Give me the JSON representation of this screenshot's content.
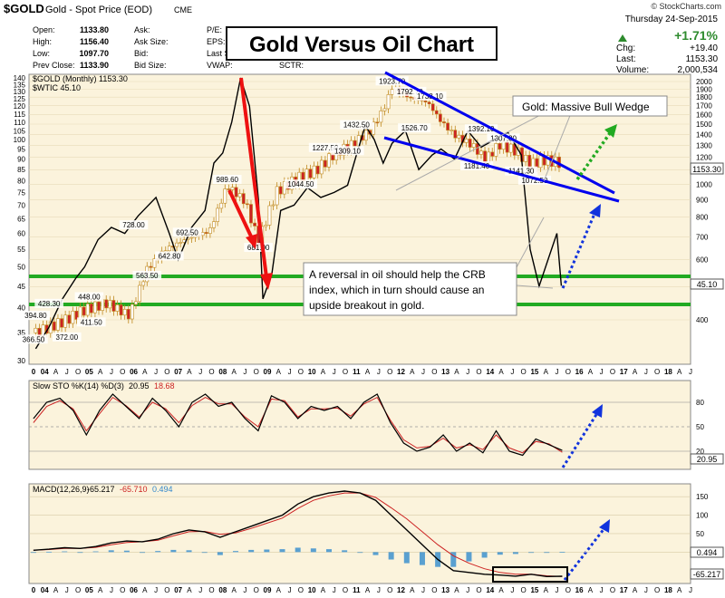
{
  "header": {
    "symbol": "$GOLD",
    "name": "Gold - Spot Price (EOD)",
    "exchange": "CME",
    "brand": "© StockCharts.com",
    "date": "Thursday  24-Sep-2015",
    "pct_change": "+1.71%",
    "chg_label": "Chg:",
    "chg_value": "+19.40",
    "last_label": "Last:",
    "last_value": "1153.30",
    "volume_label": "Volume:",
    "volume_value": "2,000,534",
    "stats": [
      {
        "label": "Open:",
        "value": "1133.80"
      },
      {
        "label": "High:",
        "value": "1156.40"
      },
      {
        "label": "Low:",
        "value": "1097.70"
      },
      {
        "label": "Prev Close:",
        "value": "1133.90"
      }
    ],
    "mid_labels": [
      "Ask:",
      "Ask Size:",
      "Bid:",
      "Bid Size:"
    ],
    "right_labels": [
      "P/E:",
      "EPS:",
      "Last S",
      "VWAP:",
      "SCTR:"
    ]
  },
  "title": "Gold Versus Oil Chart",
  "legend": {
    "gold": "$GOLD (Monthly) 1153.30",
    "wtic": "$WTIC 45.10"
  },
  "callouts": {
    "wedge": "Gold:  Massive Bull Wedge",
    "reversal": [
      "A reversal in oil should help the CRB",
      "index, which in turn should cause an",
      "upside breakout in gold."
    ]
  },
  "colors": {
    "gold_up": "#ffffff",
    "gold_down": "#cc2222",
    "gold_wick": "#c08a20",
    "oil_line": "#000000",
    "support": "#22aa22",
    "wedge": "#0000ee",
    "red_arrow": "#ee1111",
    "green_arrow": "#22aa22",
    "blue_arrow": "#1133dd",
    "panel_bg": "#fbf3dc"
  },
  "chart_data": [
    {
      "type": "line",
      "panel": "price",
      "title": "$GOLD (Monthly)",
      "x_ticks": [
        "0",
        "04",
        "A",
        "J",
        "O",
        "05",
        "A",
        "J",
        "O",
        "06",
        "A",
        "J",
        "O",
        "07",
        "A",
        "J",
        "O",
        "08",
        "A",
        "J",
        "O",
        "09",
        "A",
        "J",
        "O",
        "10",
        "A",
        "J",
        "O",
        "11",
        "A",
        "J",
        "O",
        "12",
        "A",
        "J",
        "O",
        "13",
        "A",
        "J",
        "O",
        "14",
        "A",
        "J",
        "O",
        "15",
        "A",
        "J",
        "O",
        "16",
        "A",
        "J",
        "O",
        "17",
        "A",
        "J",
        "O",
        "18",
        "A",
        "J"
      ],
      "left_axis": {
        "ticks": [
          140,
          135,
          130,
          125,
          120,
          115,
          110,
          105,
          100,
          95,
          90,
          85,
          80,
          75,
          70,
          65,
          60,
          55,
          50,
          45,
          40,
          35,
          30
        ],
        "label": "$WTIC"
      },
      "right_axis": {
        "ticks": [
          2000,
          1900,
          1800,
          1700,
          1600,
          1500,
          1400,
          1300,
          1200,
          1100,
          1000,
          900,
          800,
          700,
          600,
          500,
          400
        ],
        "scale": "log"
      },
      "last_labels": {
        "gold": "1153.30",
        "oil": "45.10"
      },
      "series": [
        {
          "name": "$GOLD",
          "axis": "right",
          "type": "candlestick",
          "x": [
            2003.9,
            2004.5,
            2005.0,
            2005.5,
            2006.0,
            2006.4,
            2006.8,
            2007.3,
            2007.8,
            2008.2,
            2008.6,
            2008.9,
            2009.3,
            2009.8,
            2010.2,
            2010.6,
            2011.0,
            2011.4,
            2011.7,
            2011.9,
            2012.3,
            2012.7,
            2013.0,
            2013.3,
            2013.7,
            2014.0,
            2014.3,
            2014.7,
            2015.0,
            2015.3,
            2015.7
          ],
          "values": [
            366.5,
            394.8,
            428.3,
            448.0,
            411.5,
            563.5,
            642.8,
            692.5,
            728.0,
            989.6,
            890,
            681.0,
            950,
            1044.5,
            1100,
            1227.5,
            1309.1,
            1432.5,
            1650,
            1923.7,
            1792.7,
            1738.1,
            1526.7,
            1392.1,
            1300,
            1181.4,
            1307.8,
            1250,
            1140,
            1180,
            1153.3
          ]
        },
        {
          "name": "$WTIC",
          "axis": "left",
          "type": "line",
          "x": [
            2003.9,
            2004.2,
            2004.5,
            2004.8,
            2005.0,
            2005.3,
            2005.6,
            2005.9,
            2006.2,
            2006.6,
            2006.9,
            2007.1,
            2007.4,
            2007.7,
            2007.9,
            2008.1,
            2008.3,
            2008.5,
            2008.7,
            2008.9,
            2009.0,
            2009.2,
            2009.4,
            2009.7,
            2010.0,
            2010.3,
            2010.6,
            2010.9,
            2011.1,
            2011.3,
            2011.5,
            2011.7,
            2011.9,
            2012.2,
            2012.5,
            2012.8,
            2013.0,
            2013.3,
            2013.6,
            2013.9,
            2014.2,
            2014.5,
            2014.8,
            2015.0,
            2015.2,
            2015.4,
            2015.6,
            2015.7
          ],
          "values": [
            32,
            36,
            42,
            47,
            50,
            58,
            62,
            60,
            66,
            73,
            60,
            52,
            62,
            68,
            88,
            93,
            110,
            140,
            120,
            72,
            42,
            48,
            68,
            70,
            77,
            73,
            75,
            78,
            92,
            108,
            100,
            88,
            98,
            105,
            85,
            92,
            95,
            90,
            105,
            96,
            100,
            104,
            92,
            55,
            45,
            52,
            60,
            45.1
          ]
        }
      ],
      "annotations": [
        "366.50",
        "394.80",
        "428.30",
        "372.00",
        "448.00",
        "411.50",
        "563.50",
        "642.80",
        "692.50",
        "728.00",
        "989.60",
        "681.00",
        "1044.50",
        "1227.50",
        "1309.10",
        "1432.50",
        "1923.70",
        "1792.70",
        "1738.10",
        "1526.70",
        "1392.10",
        "1181.40",
        "1307.80",
        "1141.30",
        "1072.50"
      ]
    },
    {
      "type": "line",
      "panel": "stochastic",
      "title": "Slow STO %K(14) %D(3)",
      "k_label": "20.95",
      "d_label": "18.68",
      "y_ticks": [
        80,
        50,
        20
      ],
      "last_label": "20.95",
      "series": [
        {
          "name": "%K",
          "values": [
            60,
            80,
            85,
            70,
            40,
            70,
            90,
            75,
            60,
            85,
            70,
            50,
            80,
            90,
            75,
            80,
            60,
            45,
            88,
            80,
            60,
            75,
            70,
            75,
            60,
            80,
            90,
            55,
            30,
            20,
            25,
            40,
            20,
            30,
            18,
            45,
            20,
            15,
            35,
            28,
            20.95
          ]
        },
        {
          "name": "%D",
          "values": [
            55,
            75,
            82,
            72,
            45,
            66,
            86,
            76,
            62,
            80,
            72,
            55,
            76,
            86,
            78,
            78,
            62,
            50,
            84,
            82,
            62,
            72,
            72,
            73,
            63,
            78,
            86,
            58,
            34,
            24,
            26,
            36,
            24,
            28,
            22,
            40,
            24,
            18,
            32,
            29,
            18.68
          ]
        }
      ]
    },
    {
      "type": "line",
      "panel": "macd",
      "title": "MACD(12,26,9)",
      "macd_label": "-65.217",
      "signal_label": "-65.710",
      "hist_label": "0.494",
      "y_ticks": [
        150,
        100,
        50,
        0
      ],
      "last_labels": [
        "0.494",
        "-65.217"
      ],
      "series": [
        {
          "name": "MACD",
          "values": [
            5,
            8,
            12,
            10,
            15,
            25,
            30,
            28,
            35,
            50,
            60,
            55,
            40,
            55,
            70,
            85,
            100,
            130,
            150,
            160,
            165,
            160,
            140,
            100,
            60,
            20,
            -20,
            -50,
            -55,
            -60,
            -62,
            -65,
            -60,
            -66,
            -65.217
          ]
        },
        {
          "name": "Signal",
          "values": [
            5,
            7,
            10,
            10,
            13,
            20,
            26,
            28,
            32,
            44,
            55,
            56,
            48,
            52,
            64,
            78,
            92,
            118,
            140,
            152,
            160,
            160,
            148,
            120,
            90,
            55,
            20,
            -10,
            -30,
            -45,
            -55,
            -60,
            -60,
            -64,
            -65.71
          ]
        },
        {
          "name": "Histogram",
          "values": [
            0,
            1,
            2,
            0,
            2,
            5,
            4,
            0,
            3,
            6,
            5,
            -1,
            -8,
            3,
            6,
            7,
            8,
            12,
            10,
            8,
            5,
            0,
            -8,
            -20,
            -30,
            -35,
            -40,
            -40,
            -25,
            -15,
            -7,
            -5,
            0,
            -2,
            0.494
          ]
        }
      ]
    }
  ]
}
